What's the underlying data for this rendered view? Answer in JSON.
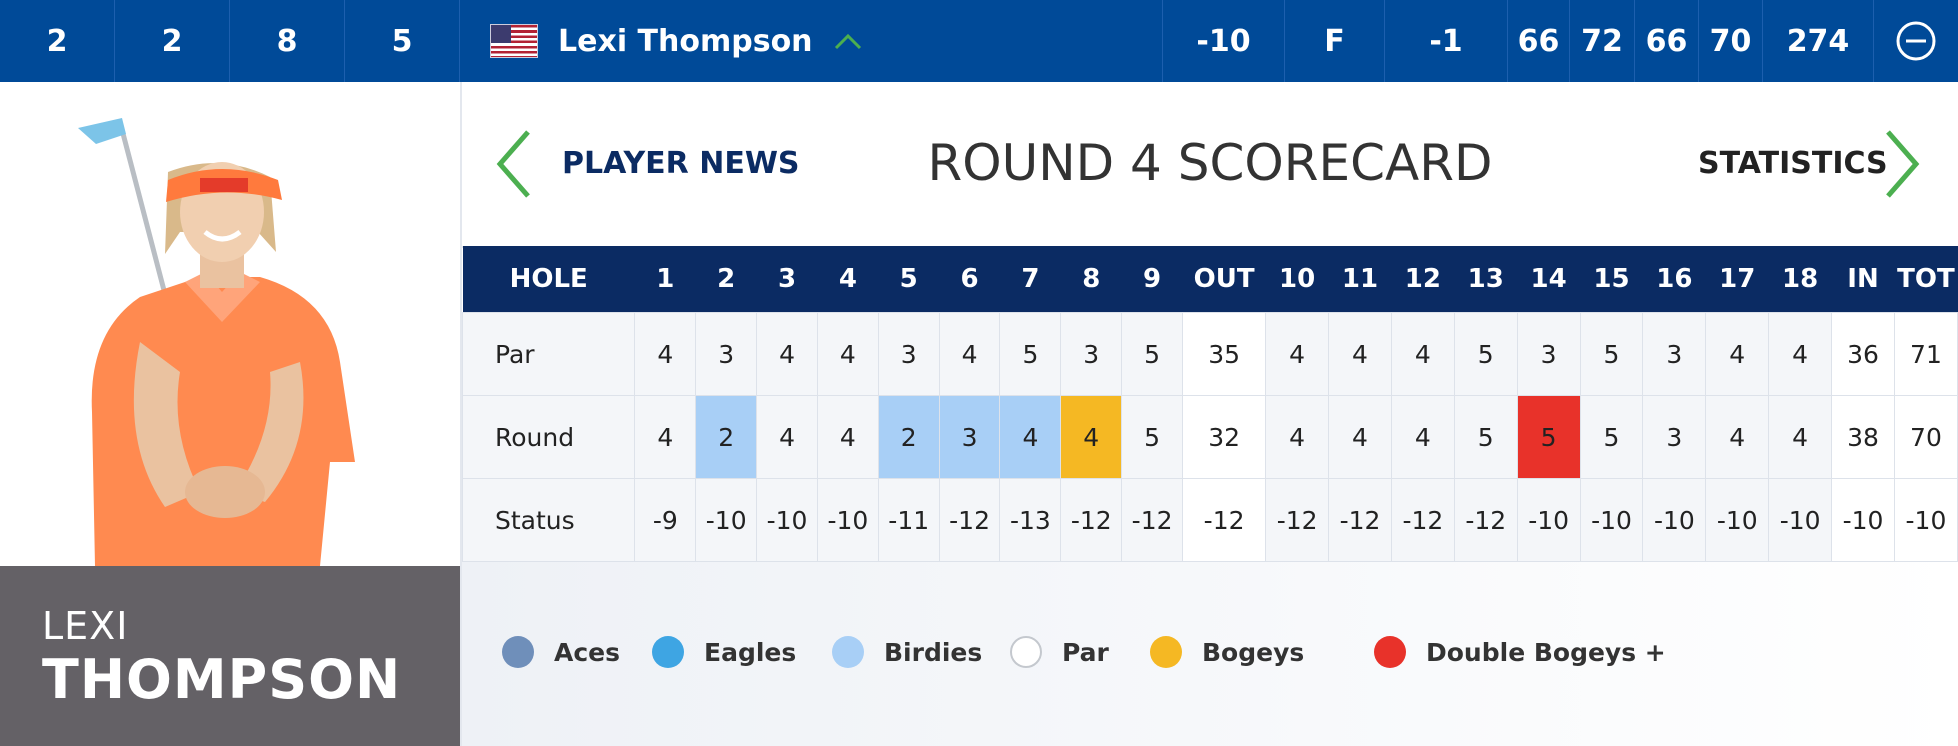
{
  "colors": {
    "top_bar": "#004a98",
    "table_header": "#0b2b63",
    "accent_green": "#4caf50",
    "name_panel": "#646166",
    "birdie": "#a8cff6",
    "bogey": "#f5b823",
    "double_bogey": "#e8322a"
  },
  "top_bar": {
    "cells": [
      "2",
      "2",
      "8",
      "5"
    ],
    "player_name": "Lexi Thompson",
    "flag_icon": "us-flag-icon",
    "expand_icon": "chevron-up-icon",
    "to_par": "-10",
    "thru": "F",
    "today": "-1",
    "rounds": [
      "66",
      "72",
      "66",
      "70"
    ],
    "total": "274",
    "collapse_icon": "minus-circle-icon"
  },
  "player": {
    "first_name": "LEXI",
    "last_name": "THOMPSON"
  },
  "nav": {
    "player_news": "PLAYER NEWS",
    "title": "ROUND 4 SCORECARD",
    "statistics": "STATISTICS"
  },
  "scorecard": {
    "headers": [
      "HOLE",
      "1",
      "2",
      "3",
      "4",
      "5",
      "6",
      "7",
      "8",
      "9",
      "OUT",
      "10",
      "11",
      "12",
      "13",
      "14",
      "15",
      "16",
      "17",
      "18",
      "IN",
      "TOT"
    ],
    "rows": [
      {
        "label": "Par",
        "cells": [
          "4",
          "3",
          "4",
          "4",
          "3",
          "4",
          "5",
          "3",
          "5",
          "35",
          "4",
          "4",
          "4",
          "5",
          "3",
          "5",
          "3",
          "4",
          "4",
          "36",
          "71"
        ]
      },
      {
        "label": "Round",
        "cells": [
          "4",
          "2",
          "4",
          "4",
          "2",
          "3",
          "4",
          "4",
          "5",
          "32",
          "4",
          "4",
          "4",
          "5",
          "5",
          "5",
          "3",
          "4",
          "4",
          "38",
          "70"
        ],
        "results": [
          "par",
          "birdie",
          "par",
          "par",
          "birdie",
          "birdie",
          "birdie",
          "bogey",
          "par",
          "total",
          "par",
          "par",
          "par",
          "par",
          "double_bogey",
          "par",
          "par",
          "par",
          "par",
          "total",
          "total"
        ]
      },
      {
        "label": "Status",
        "cells": [
          "-9",
          "-10",
          "-10",
          "-10",
          "-11",
          "-12",
          "-13",
          "-12",
          "-12",
          "-12",
          "-12",
          "-12",
          "-12",
          "-12",
          "-10",
          "-10",
          "-10",
          "-10",
          "-10",
          "-10",
          "-10"
        ]
      }
    ]
  },
  "legend": [
    {
      "label": "Aces",
      "color": "#6f8fba"
    },
    {
      "label": "Eagles",
      "color": "#3ea5e3"
    },
    {
      "label": "Birdies",
      "color": "#a8cff6"
    },
    {
      "label": "Par",
      "color": "#ffffff"
    },
    {
      "label": "Bogeys",
      "color": "#f5b823"
    },
    {
      "label": "Double Bogeys +",
      "color": "#e8322a"
    }
  ]
}
